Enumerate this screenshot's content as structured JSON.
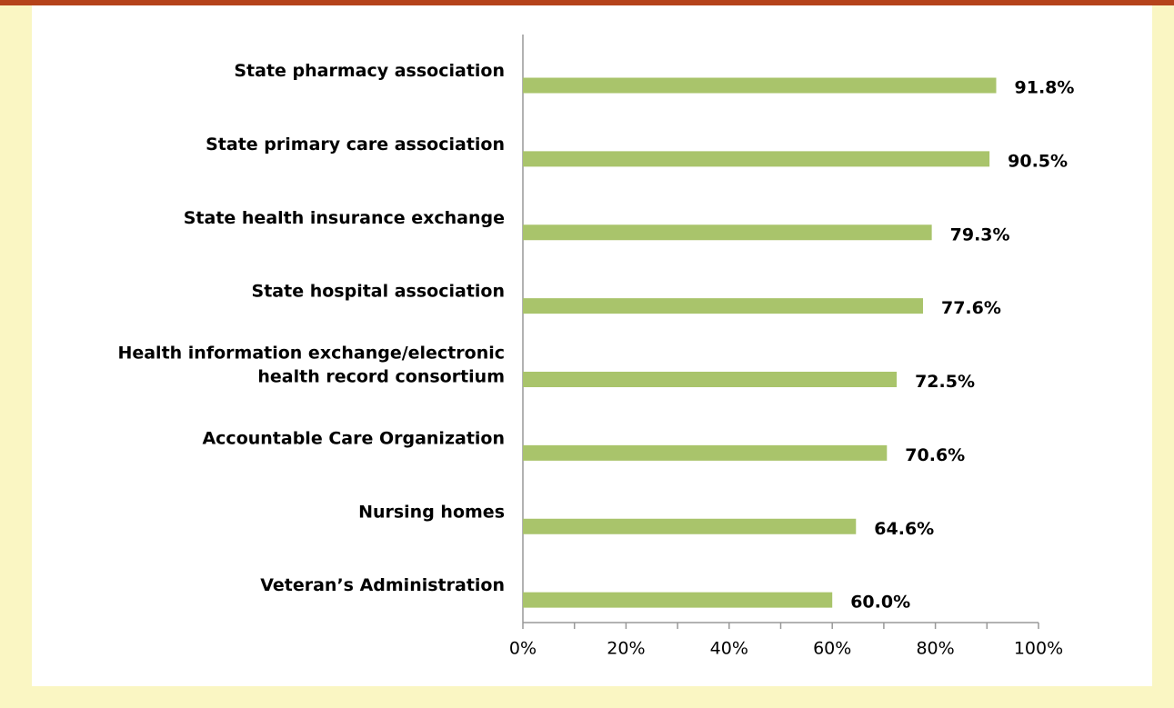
{
  "chart_data": {
    "type": "hbar",
    "categories": [
      "State pharmacy association",
      "State primary care association",
      "State health insurance exchange",
      "State hospital association",
      "Health information exchange/electronic\nhealth record consortium",
      "Accountable Care Organization",
      "Nursing homes",
      "Veteran’s Administration"
    ],
    "values": [
      91.8,
      90.5,
      79.3,
      77.6,
      72.5,
      70.6,
      64.6,
      60.0
    ],
    "value_labels": [
      "91.8%",
      "90.5%",
      "79.3%",
      "77.6%",
      "72.5%",
      "70.6%",
      "64.6%",
      "60.0%"
    ],
    "color": "#a9c46b",
    "xlim": [
      0,
      100
    ],
    "xticks": [
      {
        "value": 0,
        "label": "0%"
      },
      {
        "value": 20,
        "label": "20%"
      },
      {
        "value": 40,
        "label": "40%"
      },
      {
        "value": 60,
        "label": "60%"
      },
      {
        "value": 80,
        "label": "80%"
      },
      {
        "value": 100,
        "label": "100%"
      }
    ],
    "xminor_ticks": [
      10,
      30,
      50,
      70,
      90
    ],
    "grid": false
  }
}
